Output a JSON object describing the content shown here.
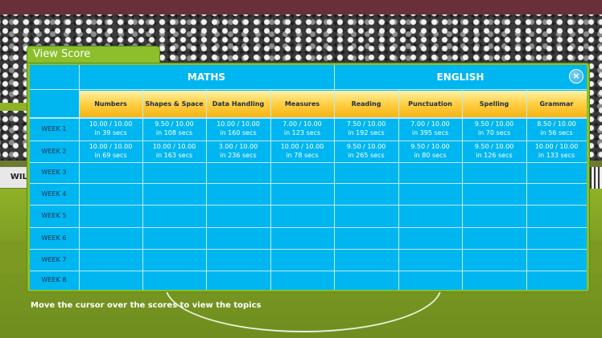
{
  "window": {
    "tab_title": "View Score",
    "close_label": "×",
    "hint": "Move the cursor over the scores to view the topics",
    "banner_text": "WIL"
  },
  "groups": [
    {
      "label": "MATHS"
    },
    {
      "label": "ENGLISH"
    }
  ],
  "columns": [
    {
      "label": "Numbers"
    },
    {
      "label": "Shapes & Space"
    },
    {
      "label": "Data Handling"
    },
    {
      "label": "Measures"
    },
    {
      "label": "Reading"
    },
    {
      "label": "Punctuation"
    },
    {
      "label": "Spelling"
    },
    {
      "label": "Grammar"
    }
  ],
  "rows": [
    {
      "label": "WEEK 1",
      "cells": [
        {
          "score": "10.00 / 10.00",
          "time": "in 39 secs"
        },
        {
          "score": "9.50 / 10.00",
          "time": "in 108 secs"
        },
        {
          "score": "10.00 / 10.00",
          "time": "in 160 secs"
        },
        {
          "score": "7.00 / 10.00",
          "time": "in 123 secs"
        },
        {
          "score": "7.50 / 10.00",
          "time": "in 192 secs"
        },
        {
          "score": "7.00 / 10.00",
          "time": "in 395 secs"
        },
        {
          "score": "9.50 / 10.00",
          "time": "in 70 secs"
        },
        {
          "score": "8.50 / 10.00",
          "time": "in 56 secs"
        }
      ]
    },
    {
      "label": "WEEK 2",
      "cells": [
        {
          "score": "10.00 / 10.00",
          "time": "in 69 secs"
        },
        {
          "score": "10.00 / 10.00",
          "time": "in 163 secs"
        },
        {
          "score": "3.00 / 10.00",
          "time": "in 236 secs"
        },
        {
          "score": "10.00 / 10.00",
          "time": "in 78 secs"
        },
        {
          "score": "9.50 / 10.00",
          "time": "in 265 secs"
        },
        {
          "score": "9.50 / 10.00",
          "time": "in 80 secs"
        },
        {
          "score": "9.50 / 10.00",
          "time": "in 126 secs"
        },
        {
          "score": "10.00 / 10.00",
          "time": "in 133 secs"
        }
      ]
    },
    {
      "label": "WEEK 3",
      "cells": []
    },
    {
      "label": "WEEK 4",
      "cells": []
    },
    {
      "label": "WEEK 5",
      "cells": []
    },
    {
      "label": "WEEK 6",
      "cells": []
    },
    {
      "label": "WEEK 7",
      "cells": []
    },
    {
      "label": "WEEK 8",
      "cells": []
    }
  ],
  "colors": {
    "table_blue": "#00b6f0",
    "frame_green": "#8bbf2b",
    "header_yellow": "#ffd24a"
  }
}
